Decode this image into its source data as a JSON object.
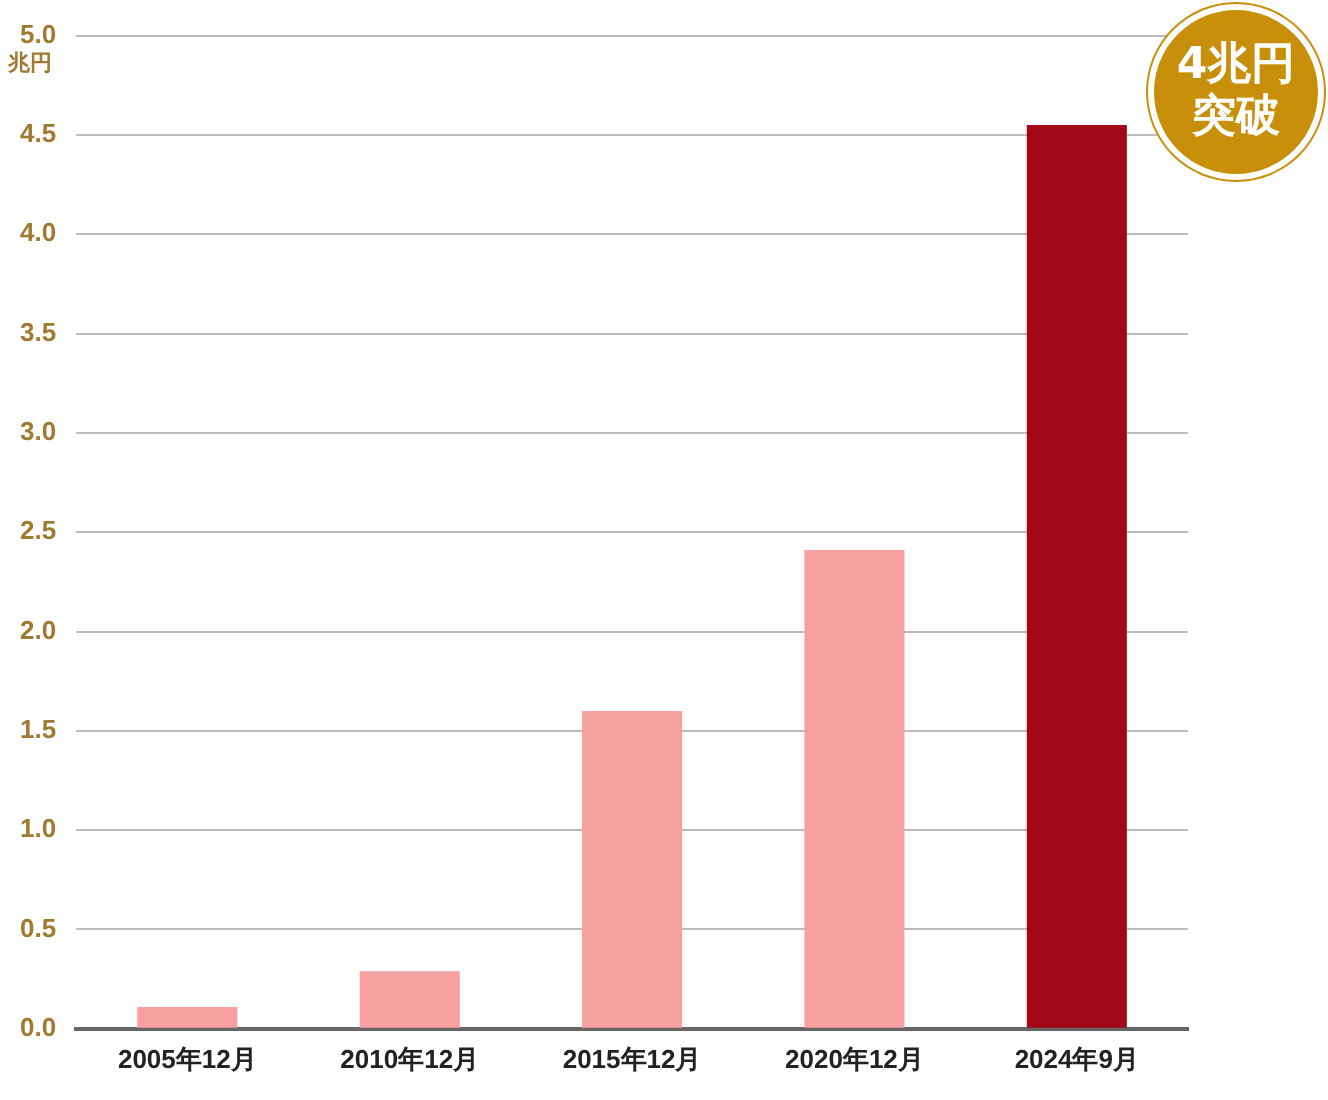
{
  "chart_data": {
    "type": "bar",
    "ylabel": "兆円",
    "categories": [
      "2005年12月",
      "2010年12月",
      "2015年12月",
      "2020年12月",
      "2024年9月"
    ],
    "values": [
      0.11,
      0.29,
      1.6,
      2.41,
      4.55
    ],
    "colors": [
      "#f7a0a0",
      "#f7a0a0",
      "#f7a0a0",
      "#f7a0a0",
      "#a30818"
    ],
    "ylim": [
      0,
      5
    ],
    "yticks": [
      {
        "value": 0,
        "label": "0.0"
      },
      {
        "value": 0.5,
        "label": "0.5"
      },
      {
        "value": 1,
        "label": "1.0"
      },
      {
        "value": 1.5,
        "label": "1.5"
      },
      {
        "value": 2,
        "label": "2.0"
      },
      {
        "value": 2.5,
        "label": "2.5"
      },
      {
        "value": 3,
        "label": "3.0"
      },
      {
        "value": 3.5,
        "label": "3.5"
      },
      {
        "value": 4,
        "label": "4.0"
      },
      {
        "value": 4.5,
        "label": "4.5"
      },
      {
        "value": 5,
        "label": "5.0"
      }
    ],
    "grid": "y",
    "annotations": [
      "4兆円突破"
    ]
  }
}
